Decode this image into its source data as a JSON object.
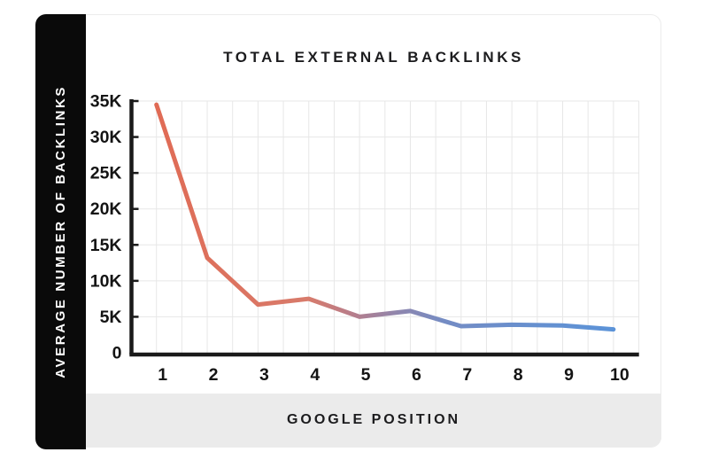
{
  "sidebar": {
    "label": "AVERAGE NUMBER OF BACKLINKS"
  },
  "footer": {
    "label": "GOOGLE POSITION"
  },
  "title": {
    "text": "TOTAL EXTERNAL BACKLINKS"
  },
  "chart_data": {
    "type": "line",
    "title": "TOTAL EXTERNAL BACKLINKS",
    "xlabel": "GOOGLE POSITION",
    "ylabel": "AVERAGE NUMBER OF BACKLINKS",
    "categories": [
      "1",
      "2",
      "3",
      "4",
      "5",
      "6",
      "7",
      "8",
      "9",
      "10"
    ],
    "series": [
      {
        "name": "Average number of backlinks",
        "values": [
          34500,
          13200,
          6700,
          7500,
          5000,
          5800,
          3700,
          3900,
          3800,
          3250
        ]
      }
    ],
    "ylim": [
      0,
      35000
    ],
    "yticks": [
      {
        "value": 0,
        "label": "0"
      },
      {
        "value": 5000,
        "label": "5K"
      },
      {
        "value": 10000,
        "label": "10K"
      },
      {
        "value": 15000,
        "label": "15K"
      },
      {
        "value": 20000,
        "label": "20K"
      },
      {
        "value": 25000,
        "label": "25K"
      },
      {
        "value": 30000,
        "label": "30K"
      },
      {
        "value": 35000,
        "label": "35K"
      }
    ],
    "grid": true,
    "legend_position": "none",
    "line_width": 5,
    "gradient_stops": [
      {
        "offset": 0.0,
        "color": "#E06B55"
      },
      {
        "offset": 0.33,
        "color": "#D87B6B"
      },
      {
        "offset": 0.42,
        "color": "#BA7D88"
      },
      {
        "offset": 0.53,
        "color": "#8E86AE"
      },
      {
        "offset": 0.63,
        "color": "#748CC4"
      },
      {
        "offset": 1.0,
        "color": "#5B93D8"
      }
    ]
  },
  "colors": {
    "axis": "#1A1A1A",
    "grid": "#E7E7E7",
    "sidebar_bg": "#0A0A0A",
    "sidebar_text": "#FFFFFF",
    "footer_bg": "#EBEBEB",
    "card_border": "#ECECEC",
    "text": "#1C1C1E",
    "line_start": "#E06B55",
    "line_end": "#5B93D8"
  }
}
